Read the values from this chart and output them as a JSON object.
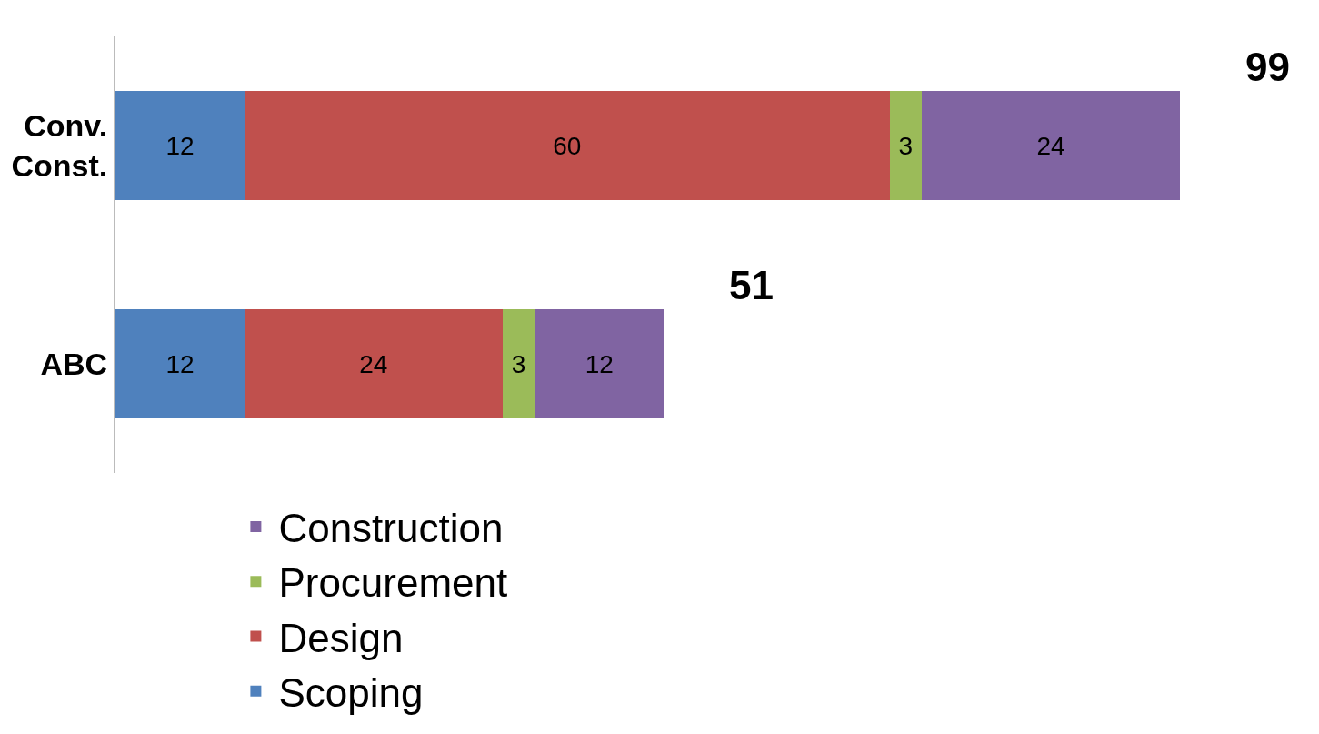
{
  "chart_data": {
    "type": "bar",
    "orientation": "horizontal",
    "stacked": true,
    "categories": [
      "Conv. Const.",
      "ABC"
    ],
    "series": [
      {
        "name": "Scoping",
        "color": "#4f81bd",
        "values": [
          12,
          12
        ]
      },
      {
        "name": "Design",
        "color": "#c0504d",
        "values": [
          60,
          24
        ]
      },
      {
        "name": "Procurement",
        "color": "#9bbb59",
        "values": [
          3,
          3
        ]
      },
      {
        "name": "Construction",
        "color": "#8064a2",
        "values": [
          24,
          12
        ]
      }
    ],
    "data_labels": true,
    "totals": [
      "99",
      "51"
    ],
    "legend": "bottom",
    "grid": false,
    "tick_labels": "y"
  }
}
